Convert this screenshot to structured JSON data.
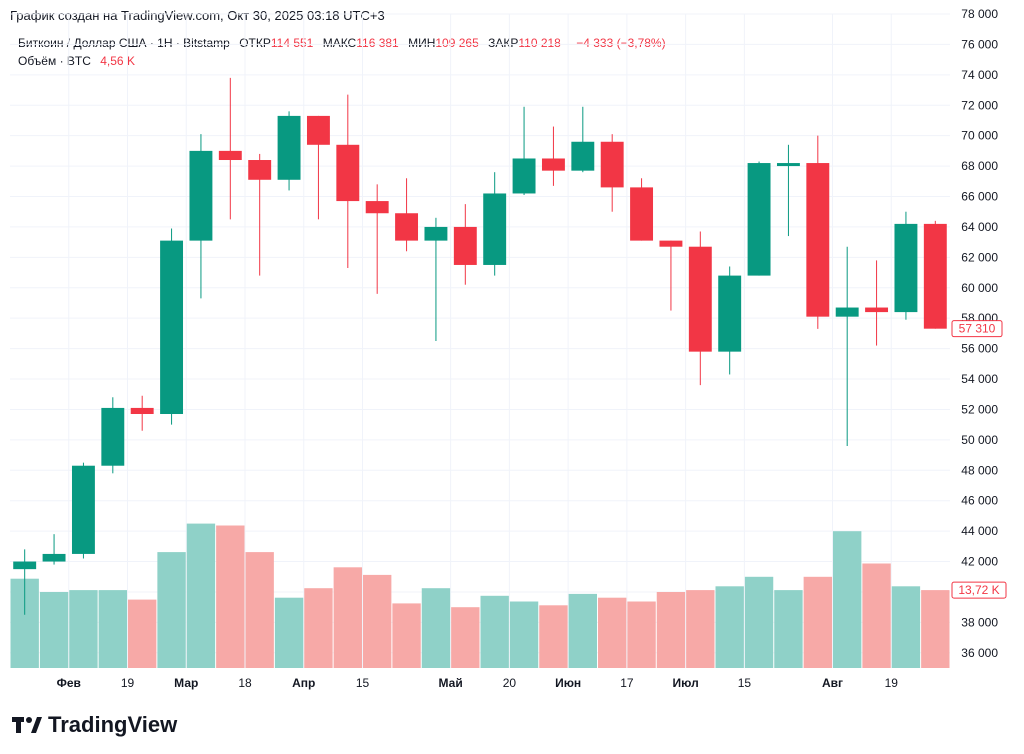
{
  "caption": "График создан на TradingView.com, Окт 30, 2025 03:18 UTC+3",
  "legend": {
    "symbol": "Биткоин / Доллар США · 1Н · Bitstamp",
    "open_label": "ОТКР",
    "open_value": "114 551",
    "high_label": "МАКС",
    "high_value": "116 381",
    "low_label": "МИН",
    "low_value": "109 265",
    "close_label": "ЗАКР",
    "close_value": "110 218",
    "change": "−4 333 (−3,78%)",
    "volume_label": "Объём · BTC",
    "volume_value": "4,56 K"
  },
  "brand": {
    "name": "TradingView"
  },
  "colors": {
    "up": "#089981",
    "down": "#f23645",
    "volume_up": "#8fd1c8",
    "volume_down": "#f7a9a7",
    "grid": "#f0f3fa"
  },
  "chart_data": {
    "type": "candlestick",
    "ylim": [
      35000,
      78000
    ],
    "y_ticks": [
      "36 000",
      "38 000",
      "40 000",
      "42 000",
      "44 000",
      "46 000",
      "48 000",
      "50 000",
      "52 000",
      "54 000",
      "56 000",
      "58 000",
      "60 000",
      "62 000",
      "64 000",
      "66 000",
      "68 000",
      "70 000",
      "72 000",
      "74 000",
      "76 000",
      "78 000"
    ],
    "x_labels": [
      "Фев",
      "19",
      "Мар",
      "18",
      "Апр",
      "15",
      "Май",
      "20",
      "Июн",
      "17",
      "Июл",
      "15",
      "Авг",
      "19"
    ],
    "x_label_slots": [
      2,
      4,
      6,
      8,
      10,
      12,
      15,
      17,
      19,
      21,
      23,
      25,
      28,
      30
    ],
    "last_price_label": "57 310",
    "last_volume_label": "13,72 K",
    "candles": [
      {
        "o": 41500,
        "h": 42800,
        "l": 38500,
        "c": 42000
      },
      {
        "o": 42000,
        "h": 43800,
        "l": 41800,
        "c": 42500
      },
      {
        "o": 42500,
        "h": 48500,
        "l": 42200,
        "c": 48300
      },
      {
        "o": 48300,
        "h": 52800,
        "l": 47800,
        "c": 52100
      },
      {
        "o": 52100,
        "h": 52900,
        "l": 50600,
        "c": 51700
      },
      {
        "o": 51700,
        "h": 63900,
        "l": 51000,
        "c": 63100
      },
      {
        "o": 63100,
        "h": 70100,
        "l": 59300,
        "c": 69000
      },
      {
        "o": 69000,
        "h": 73800,
        "l": 64500,
        "c": 68400
      },
      {
        "o": 68400,
        "h": 68800,
        "l": 60800,
        "c": 67100
      },
      {
        "o": 67100,
        "h": 71600,
        "l": 66400,
        "c": 71300
      },
      {
        "o": 71300,
        "h": 71300,
        "l": 64500,
        "c": 69400
      },
      {
        "o": 69400,
        "h": 72700,
        "l": 61300,
        "c": 65700
      },
      {
        "o": 65700,
        "h": 66800,
        "l": 59600,
        "c": 64900
      },
      {
        "o": 64900,
        "h": 67200,
        "l": 62400,
        "c": 63100
      },
      {
        "o": 63100,
        "h": 64600,
        "l": 56500,
        "c": 64000
      },
      {
        "o": 64000,
        "h": 65500,
        "l": 60200,
        "c": 61500
      },
      {
        "o": 61500,
        "h": 67600,
        "l": 60800,
        "c": 66200
      },
      {
        "o": 66200,
        "h": 71900,
        "l": 66100,
        "c": 68500
      },
      {
        "o": 68500,
        "h": 70600,
        "l": 66700,
        "c": 67700
      },
      {
        "o": 67700,
        "h": 71900,
        "l": 67600,
        "c": 69600
      },
      {
        "o": 69600,
        "h": 70100,
        "l": 65000,
        "c": 66600
      },
      {
        "o": 66600,
        "h": 67200,
        "l": 63100,
        "c": 63100
      },
      {
        "o": 63100,
        "h": 63100,
        "l": 58500,
        "c": 62700
      },
      {
        "o": 62700,
        "h": 63700,
        "l": 53600,
        "c": 55800
      },
      {
        "o": 55800,
        "h": 61400,
        "l": 54300,
        "c": 60800
      },
      {
        "o": 60800,
        "h": 68300,
        "l": 60800,
        "c": 68200
      },
      {
        "o": 68200,
        "h": 69400,
        "l": 63400,
        "c": 68200
      },
      {
        "o": 68200,
        "h": 70000,
        "l": 57300,
        "c": 58100
      },
      {
        "o": 58100,
        "h": 62700,
        "l": 49600,
        "c": 58700
      },
      {
        "o": 58700,
        "h": 61800,
        "l": 56200,
        "c": 58400
      },
      {
        "o": 58400,
        "h": 65000,
        "l": 57900,
        "c": 64200
      },
      {
        "o": 64200,
        "h": 64400,
        "l": 57310,
        "c": 57310
      }
    ],
    "volume": [
      {
        "v": 0.47,
        "up": true
      },
      {
        "v": 0.4,
        "up": true
      },
      {
        "v": 0.41,
        "up": true
      },
      {
        "v": 0.41,
        "up": true
      },
      {
        "v": 0.36,
        "up": false
      },
      {
        "v": 0.61,
        "up": true
      },
      {
        "v": 0.76,
        "up": true
      },
      {
        "v": 0.75,
        "up": false
      },
      {
        "v": 0.61,
        "up": false
      },
      {
        "v": 0.37,
        "up": true
      },
      {
        "v": 0.42,
        "up": false
      },
      {
        "v": 0.53,
        "up": false
      },
      {
        "v": 0.49,
        "up": false
      },
      {
        "v": 0.34,
        "up": false
      },
      {
        "v": 0.42,
        "up": true
      },
      {
        "v": 0.32,
        "up": false
      },
      {
        "v": 0.38,
        "up": true
      },
      {
        "v": 0.35,
        "up": true
      },
      {
        "v": 0.33,
        "up": false
      },
      {
        "v": 0.39,
        "up": true
      },
      {
        "v": 0.37,
        "up": false
      },
      {
        "v": 0.35,
        "up": false
      },
      {
        "v": 0.4,
        "up": false
      },
      {
        "v": 0.41,
        "up": false
      },
      {
        "v": 0.43,
        "up": true
      },
      {
        "v": 0.48,
        "up": true
      },
      {
        "v": 0.41,
        "up": true
      },
      {
        "v": 0.48,
        "up": false
      },
      {
        "v": 0.72,
        "up": true
      },
      {
        "v": 0.55,
        "up": false
      },
      {
        "v": 0.43,
        "up": true
      },
      {
        "v": 0.41,
        "up": false
      }
    ]
  }
}
